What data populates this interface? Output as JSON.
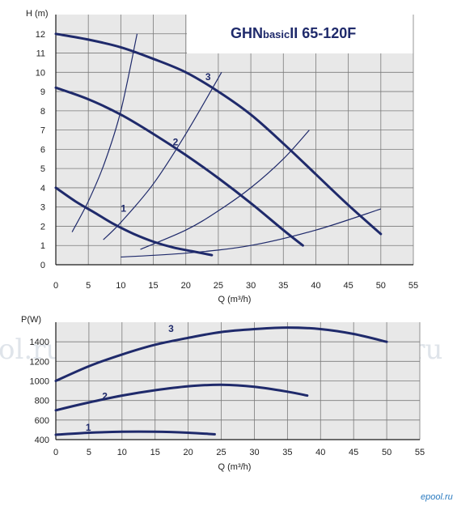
{
  "chart_data": [
    {
      "type": "line",
      "title": "GHNbasicII 65-120F",
      "title_main": "GHN",
      "title_sub": "basic",
      "title_rest": "II  65-120F",
      "ylabel": "H (m)",
      "xlabel": "Q (m³/h)",
      "xlim": [
        0,
        55
      ],
      "ylim": [
        0,
        13
      ],
      "x_ticks": [
        0,
        5,
        10,
        15,
        20,
        25,
        30,
        35,
        40,
        45,
        50,
        55
      ],
      "y_ticks": [
        0,
        1,
        2,
        3,
        4,
        5,
        6,
        7,
        8,
        9,
        10,
        11,
        12
      ],
      "grid": true,
      "series": [
        {
          "name": "1",
          "x": [
            0,
            3,
            6,
            9,
            12,
            15,
            18,
            21,
            24
          ],
          "y": [
            4.0,
            3.3,
            2.7,
            2.1,
            1.6,
            1.2,
            0.9,
            0.7,
            0.5
          ]
        },
        {
          "name": "2",
          "x": [
            0,
            5,
            10,
            15,
            20,
            25,
            30,
            35,
            38
          ],
          "y": [
            9.2,
            8.6,
            7.8,
            6.8,
            5.7,
            4.5,
            3.2,
            1.8,
            1.0
          ]
        },
        {
          "name": "3",
          "x": [
            0,
            5,
            10,
            15,
            20,
            25,
            30,
            35,
            40,
            45,
            50
          ],
          "y": [
            12.0,
            11.7,
            11.3,
            10.7,
            10.0,
            9.0,
            7.8,
            6.3,
            4.7,
            3.1,
            1.6
          ]
        }
      ],
      "system_curves": [
        {
          "x": [
            2.5,
            5,
            7.5,
            10,
            12.5
          ],
          "y": [
            1.7,
            3.3,
            5.3,
            8.0,
            12.0
          ]
        },
        {
          "x": [
            7.3,
            10,
            15,
            20,
            25.5
          ],
          "y": [
            1.3,
            2.2,
            4.2,
            6.8,
            10.0
          ]
        },
        {
          "x": [
            13,
            20,
            25,
            30,
            35,
            39
          ],
          "y": [
            0.8,
            1.8,
            2.8,
            4.0,
            5.5,
            7.0
          ]
        },
        {
          "x": [
            10,
            20,
            30,
            40,
            50
          ],
          "y": [
            0.4,
            0.6,
            1.0,
            1.8,
            2.9
          ]
        }
      ]
    },
    {
      "type": "line",
      "ylabel": "P(W)",
      "xlabel": "Q (m³/h)",
      "xlim": [
        0,
        55
      ],
      "ylim": [
        400,
        1600
      ],
      "x_ticks": [
        0,
        5,
        10,
        15,
        20,
        25,
        30,
        35,
        40,
        45,
        50,
        55
      ],
      "y_ticks": [
        400,
        600,
        800,
        1000,
        1200,
        1400
      ],
      "grid": true,
      "series": [
        {
          "name": "1",
          "x": [
            0,
            5,
            10,
            15,
            20,
            24
          ],
          "y": [
            450,
            470,
            480,
            480,
            470,
            455
          ]
        },
        {
          "name": "2",
          "x": [
            0,
            5,
            10,
            15,
            20,
            25,
            30,
            35,
            38
          ],
          "y": [
            700,
            780,
            850,
            905,
            945,
            960,
            940,
            890,
            850
          ]
        },
        {
          "name": "3",
          "x": [
            0,
            5,
            10,
            15,
            20,
            25,
            30,
            35,
            40,
            45,
            50
          ],
          "y": [
            1000,
            1150,
            1270,
            1370,
            1440,
            1500,
            1530,
            1545,
            1530,
            1480,
            1400
          ]
        }
      ]
    }
  ],
  "watermark": "ePool.ru",
  "watermark_left": "ol.ru",
  "logo": "epool.ru",
  "colors": {
    "curve": "#1f2a6b",
    "panel_bg": "#e8e8e8",
    "grid": "#7a7a7a",
    "axis": "#1a1a1a"
  }
}
